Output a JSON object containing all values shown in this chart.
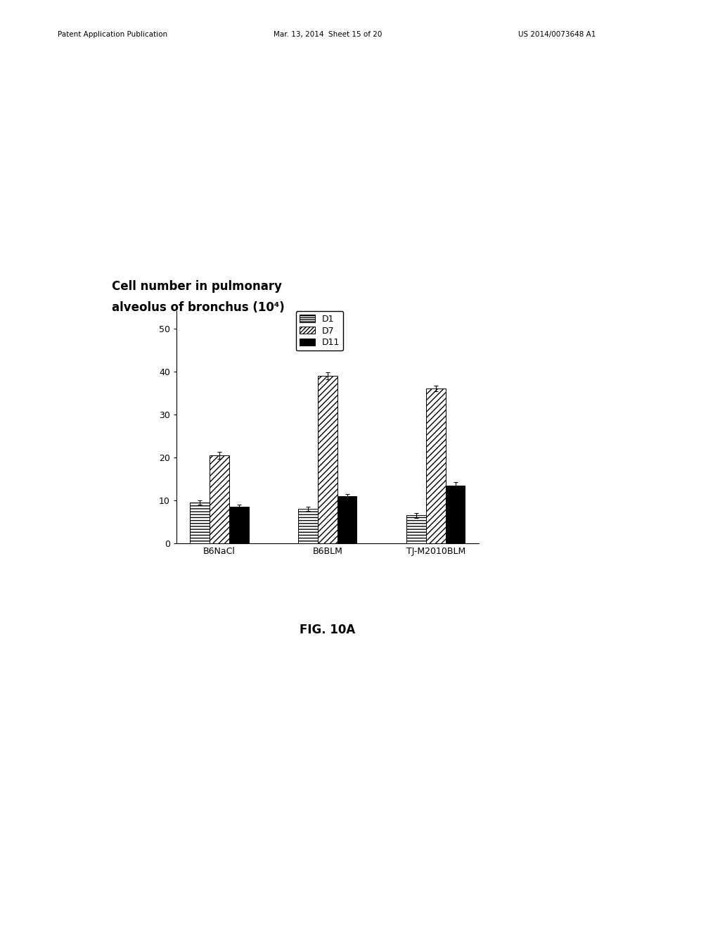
{
  "title_line1": "Cell number in pulmonary",
  "title_line2": "alveolus of bronchus (10⁴)",
  "groups": [
    "B6NaCl",
    "B6BLM",
    "TJ-M2010BLM"
  ],
  "series": [
    "D1",
    "D7",
    "D11"
  ],
  "values_by_series": [
    [
      9.5,
      8.0,
      6.5
    ],
    [
      20.5,
      39.0,
      36.0
    ],
    [
      8.5,
      11.0,
      13.5
    ]
  ],
  "errors_by_series": [
    [
      0.5,
      0.5,
      0.5
    ],
    [
      0.8,
      0.8,
      0.7
    ],
    [
      0.5,
      0.5,
      0.7
    ]
  ],
  "ylim": [
    0,
    54
  ],
  "yticks": [
    0,
    10,
    20,
    30,
    40,
    50
  ],
  "bar_width": 0.18,
  "hatches": [
    "----",
    "////",
    ""
  ],
  "face_colors": [
    "white",
    "white",
    "black"
  ],
  "edge_colors": [
    "black",
    "black",
    "black"
  ],
  "fig_caption": "FIG. 10A",
  "background_color": "#ffffff",
  "font_size_title": 12,
  "font_size_tick": 9,
  "font_size_legend": 9,
  "font_size_caption": 12
}
